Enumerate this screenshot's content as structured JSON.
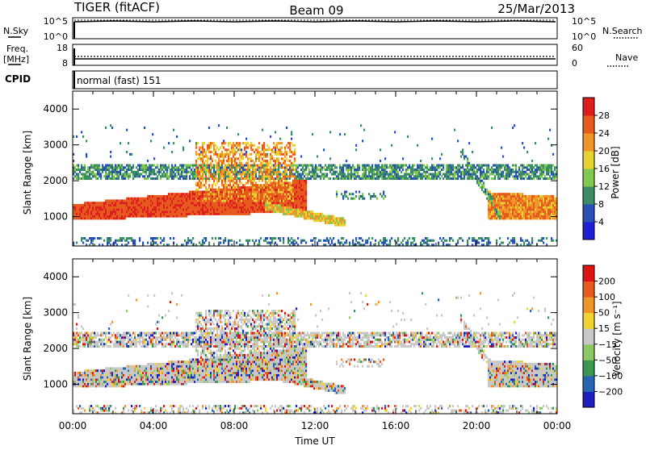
{
  "header": {
    "radar": "TIGER (fitACF)",
    "beam": "Beam 09",
    "date": "25/Mar/2013"
  },
  "top_panels": {
    "nsky_label": "N.Sky",
    "nsky_ticks": [
      "10^5",
      "10^0"
    ],
    "nsearch_label": "N.Search",
    "nsearch_ticks": [
      "10^5",
      "10^0"
    ],
    "freq_label_line1": "Freq.",
    "freq_label_line2": "[MHz]",
    "freq_ticks": [
      "18",
      "8"
    ],
    "nave_label": "Nave",
    "nave_ticks": [
      "60",
      "0"
    ],
    "cpid_label": "CPID",
    "cpid_value": "normal (fast) 151"
  },
  "chart_data": [
    {
      "type": "heatmap",
      "name": "power-panel",
      "ylabel": "Slant Range [km]",
      "y_ticks": [
        "1000",
        "2000",
        "3000",
        "4000"
      ],
      "ylim": [
        180,
        4500
      ],
      "colorbar_label": "Power [dB]",
      "colorbar_ticks": [
        "4",
        "8",
        "12",
        "16",
        "20",
        "24",
        "28"
      ],
      "colorbar_colors": [
        "#1e1ed2",
        "#2850b4",
        "#3c8c64",
        "#82c850",
        "#e6d232",
        "#f09628",
        "#e65a1e",
        "#dc1e1e"
      ]
    },
    {
      "type": "heatmap",
      "name": "velocity-panel",
      "ylabel": "Slant Range [km]",
      "y_ticks": [
        "1000",
        "2000",
        "3000",
        "4000"
      ],
      "ylim": [
        180,
        4500
      ],
      "colorbar_label": "Velocity [m s⁻¹]",
      "colorbar_ticks": [
        "200",
        "100",
        "50",
        "15",
        "−15",
        "−50",
        "−100",
        "−200"
      ],
      "colorbar_colors": [
        "#1e1ebe",
        "#2864b4",
        "#3c9650",
        "#8cc864",
        "#c8c8c8",
        "#f0d232",
        "#f09628",
        "#e65a1e",
        "#dc1414"
      ]
    }
  ],
  "time_axis": {
    "ticks": [
      "00:00",
      "04:00",
      "08:00",
      "12:00",
      "16:00",
      "20:00",
      "00:00"
    ],
    "label": "Time UT"
  }
}
